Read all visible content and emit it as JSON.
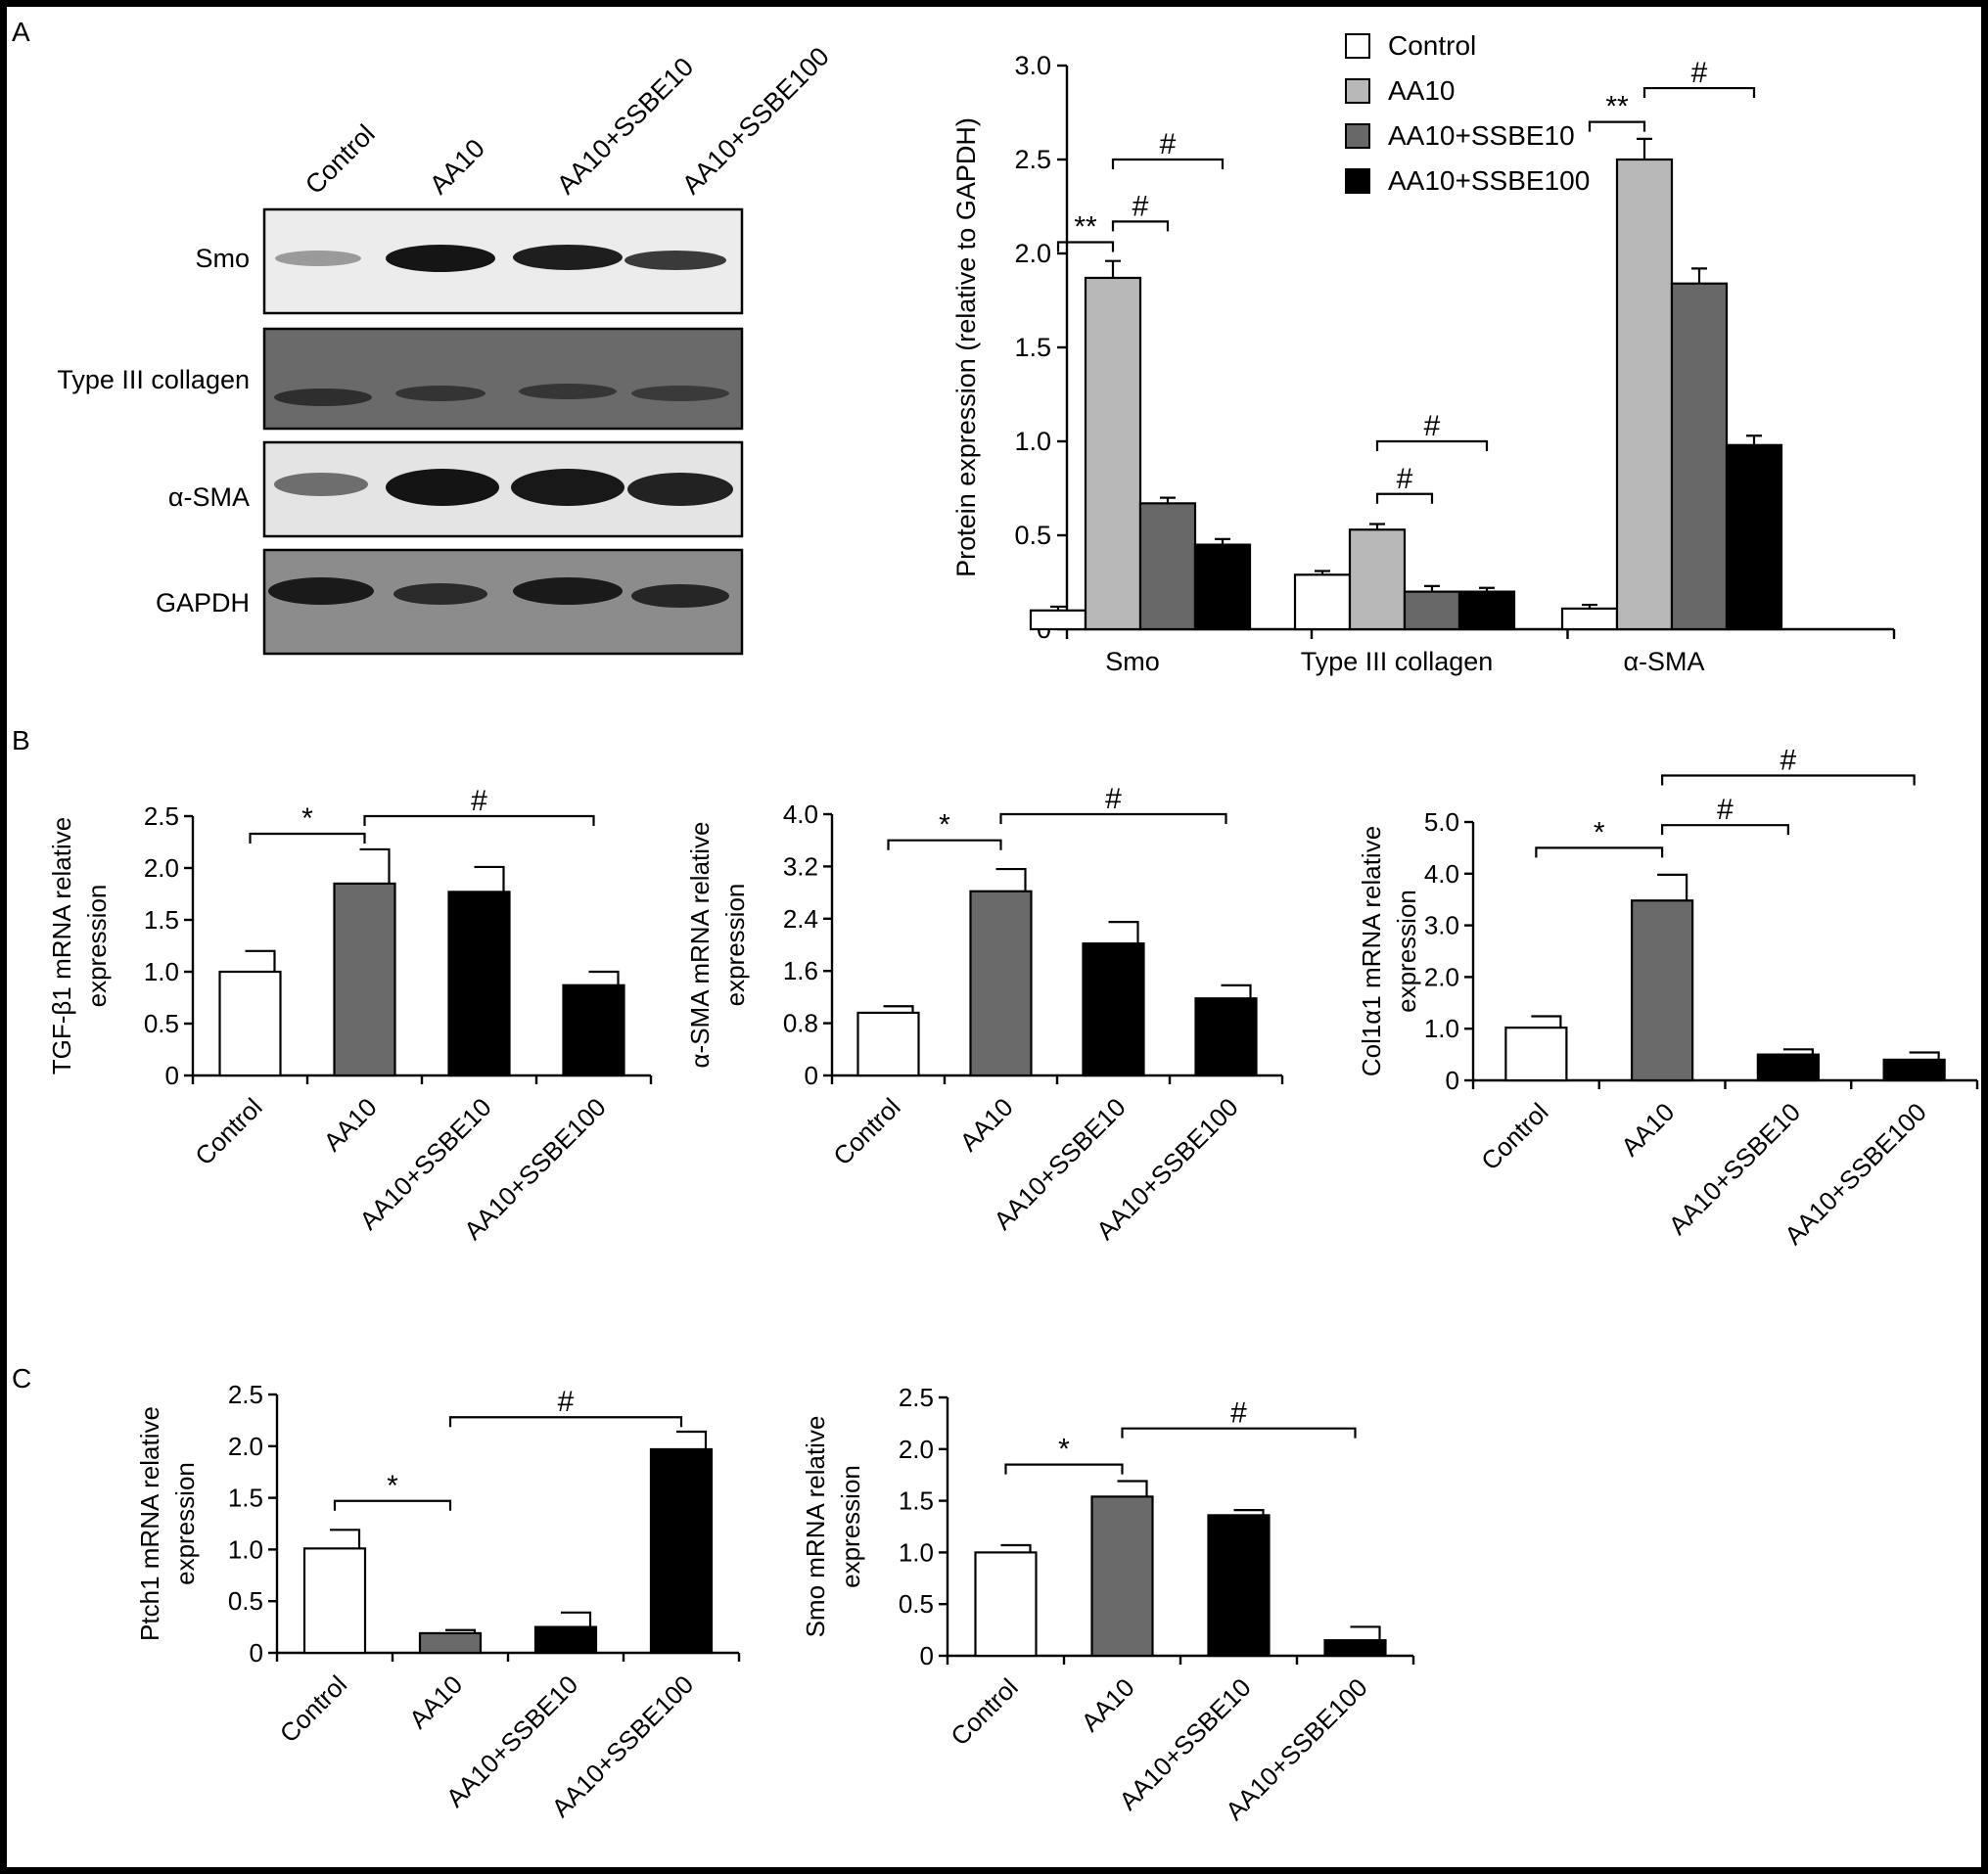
{
  "panel_labels": {
    "A": "A",
    "B": "B",
    "C": "C"
  },
  "colors": {
    "Control": "#ffffff",
    "AA10": "#b8b8b8",
    "AA10+SSBE10": "#686868",
    "AA10+SSBE100": "#000000",
    "B_AA10": "#6a6a6a"
  },
  "western_blot": {
    "lanes": [
      "Control",
      "AA10",
      "AA10+SSBE10",
      "AA10+SSBE100"
    ],
    "proteins": [
      "Smo",
      "Type III collagen",
      "α-SMA",
      "GAPDH"
    ]
  },
  "chart_data": [
    {
      "id": "A-protein",
      "type": "bar",
      "categories": [
        "Smo",
        "Type III collagen",
        "α-SMA"
      ],
      "series": [
        {
          "name": "Control",
          "values": [
            0.1,
            0.29,
            0.11
          ],
          "errors": [
            0.02,
            0.02,
            0.02
          ]
        },
        {
          "name": "AA10",
          "values": [
            1.87,
            0.53,
            2.5
          ],
          "errors": [
            0.09,
            0.03,
            0.11
          ]
        },
        {
          "name": "AA10+SSBE10",
          "values": [
            0.67,
            0.2,
            1.84
          ],
          "errors": [
            0.03,
            0.03,
            0.08
          ]
        },
        {
          "name": "AA10+SSBE100",
          "values": [
            0.45,
            0.2,
            0.98
          ],
          "errors": [
            0.03,
            0.02,
            0.05
          ]
        }
      ],
      "ylabel": "Protein expression (relative to GAPDH)",
      "ylim": [
        0,
        3.0
      ],
      "yticks": [
        "0",
        "0.5",
        "1.0",
        "1.5",
        "2.0",
        "2.5",
        "3.0"
      ],
      "legend_placement": "top-right",
      "grid": false,
      "annotations": [
        {
          "label": "**",
          "from": [
            0,
            0
          ],
          "to": [
            0,
            1
          ],
          "y": 2.06
        },
        {
          "label": "#",
          "from": [
            0,
            1
          ],
          "to": [
            0,
            2
          ],
          "y": 2.17
        },
        {
          "label": "#",
          "from": [
            0,
            1
          ],
          "to": [
            0,
            3
          ],
          "y": 2.5
        },
        {
          "label": "#",
          "from": [
            1,
            1
          ],
          "to": [
            1,
            2
          ],
          "y": 0.72
        },
        {
          "label": "#",
          "from": [
            1,
            1
          ],
          "to": [
            1,
            3
          ],
          "y": 1.0
        },
        {
          "label": "**",
          "from": [
            2,
            0
          ],
          "to": [
            2,
            1
          ],
          "y": 2.7
        },
        {
          "label": "#",
          "from": [
            2,
            1
          ],
          "to": [
            2,
            3
          ],
          "y": 2.88
        }
      ]
    },
    {
      "id": "B-tgf",
      "type": "bar",
      "categories": [
        "Control",
        "AA10",
        "AA10+SSBE10",
        "AA10+SSBE100"
      ],
      "values": [
        1.0,
        1.85,
        1.77,
        0.87
      ],
      "errors": [
        0.2,
        0.33,
        0.24,
        0.13
      ],
      "bar_colors": [
        "#ffffff",
        "#6a6a6a",
        "#000000",
        "#000000"
      ],
      "ylabel": "TGF-β1 mRNA relative expression",
      "ylabel_lines": [
        "TGF-β1 mRNA relative",
        "expression"
      ],
      "ylim": [
        0,
        2.5
      ],
      "yticks": [
        "0",
        "0.5",
        "1.0",
        "1.5",
        "2.0",
        "2.5"
      ],
      "annotations": [
        {
          "label": "*",
          "from": 0,
          "to": 1,
          "y": 2.33
        },
        {
          "label": "#",
          "from": 1,
          "to": 3,
          "y": 2.5
        }
      ]
    },
    {
      "id": "B-asma",
      "type": "bar",
      "categories": [
        "Control",
        "AA10",
        "AA10+SSBE10",
        "AA10+SSBE100"
      ],
      "values": [
        0.96,
        2.82,
        2.02,
        1.18
      ],
      "errors": [
        0.1,
        0.34,
        0.33,
        0.2
      ],
      "bar_colors": [
        "#ffffff",
        "#6a6a6a",
        "#000000",
        "#000000"
      ],
      "ylabel": "α-SMA mRNA relative expression",
      "ylabel_lines": [
        "α-SMA mRNA relative",
        "expression"
      ],
      "ylim": [
        0,
        4.0
      ],
      "yticks": [
        "0",
        "0.8",
        "1.6",
        "2.4",
        "3.2",
        "4.0"
      ],
      "annotations": [
        {
          "label": "*",
          "from": 0,
          "to": 1,
          "y": 3.6
        },
        {
          "label": "#",
          "from": 1,
          "to": 3,
          "y": 4.0
        }
      ]
    },
    {
      "id": "B-col1a1",
      "type": "bar",
      "categories": [
        "Control",
        "AA10",
        "AA10+SSBE10",
        "AA10+SSBE100"
      ],
      "values": [
        1.02,
        3.48,
        0.5,
        0.4
      ],
      "errors": [
        0.22,
        0.5,
        0.1,
        0.14
      ],
      "bar_colors": [
        "#ffffff",
        "#6a6a6a",
        "#000000",
        "#000000"
      ],
      "ylabel": "Col1α1 mRNA relative expression",
      "ylabel_lines": [
        "Col1α1 mRNA relative",
        "expression"
      ],
      "ylim": [
        0,
        5.0
      ],
      "yticks": [
        "0",
        "1.0",
        "2.0",
        "3.0",
        "4.0",
        "5.0"
      ],
      "annotations": [
        {
          "label": "*",
          "from": 0,
          "to": 1,
          "y": 4.5
        },
        {
          "label": "#",
          "from": 1,
          "to": 2,
          "y": 4.94
        },
        {
          "label": "#",
          "from": 1,
          "to": 3,
          "y": 5.9
        }
      ]
    },
    {
      "id": "C-ptch1",
      "type": "bar",
      "categories": [
        "Control",
        "AA10",
        "AA10+SSBE10",
        "AA10+SSBE100"
      ],
      "values": [
        1.01,
        0.19,
        0.25,
        1.97
      ],
      "errors": [
        0.18,
        0.03,
        0.14,
        0.17
      ],
      "bar_colors": [
        "#ffffff",
        "#6a6a6a",
        "#000000",
        "#000000"
      ],
      "ylabel": "Ptch1 mRNA relative expression",
      "ylabel_lines": [
        "Ptch1 mRNA relative",
        "expression"
      ],
      "ylim": [
        0,
        2.5
      ],
      "yticks": [
        "0",
        "0.5",
        "1.0",
        "1.5",
        "2.0",
        "2.5"
      ],
      "annotations": [
        {
          "label": "*",
          "from": 0,
          "to": 1,
          "y": 1.47
        },
        {
          "label": "#",
          "from": 1,
          "to": 3,
          "y": 2.28
        }
      ]
    },
    {
      "id": "C-smo",
      "type": "bar",
      "categories": [
        "Control",
        "AA10",
        "AA10+SSBE10",
        "AA10+SSBE100"
      ],
      "values": [
        1.0,
        1.54,
        1.36,
        0.15
      ],
      "errors": [
        0.07,
        0.15,
        0.05,
        0.13
      ],
      "bar_colors": [
        "#ffffff",
        "#6a6a6a",
        "#000000",
        "#000000"
      ],
      "ylabel": "Smo mRNA relative expression",
      "ylabel_lines": [
        "Smo mRNA relative",
        "expression"
      ],
      "ylim": [
        0,
        2.5
      ],
      "yticks": [
        "0",
        "0.5",
        "1.0",
        "1.5",
        "2.0",
        "2.5"
      ],
      "annotations": [
        {
          "label": "*",
          "from": 0,
          "to": 1,
          "y": 1.85
        },
        {
          "label": "#",
          "from": 1,
          "to": 3,
          "y": 2.2
        }
      ]
    }
  ]
}
